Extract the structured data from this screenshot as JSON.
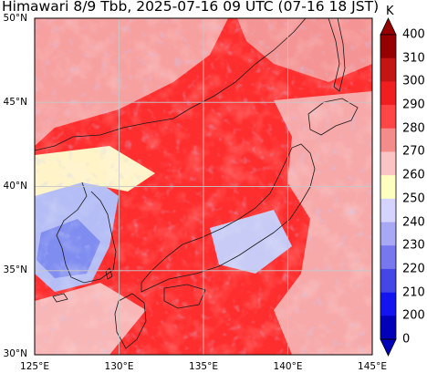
{
  "title": "Himawari 8/9 Tbb, 2025-07-16 09 UTC (07-16 18 JST)",
  "map": {
    "lat_ticks": [
      "50°N",
      "45°N",
      "40°N",
      "35°N",
      "30°N"
    ],
    "lon_ticks": [
      "125°E",
      "130°E",
      "135°E",
      "140°E",
      "145°E"
    ],
    "extent": {
      "lon": [
        125,
        145
      ],
      "lat": [
        30,
        50
      ]
    },
    "gridlines": true
  },
  "colorbar": {
    "unit": "K",
    "labels": [
      "400",
      "310",
      "300",
      "290",
      "280",
      "270",
      "260",
      "250",
      "240",
      "230",
      "220",
      "210",
      "200",
      "0"
    ],
    "colors": [
      "#960000",
      "#c41414",
      "#f01e1e",
      "#ff4646",
      "#f58c8c",
      "#fac4c4",
      "#ffffc0",
      "#d4d4ff",
      "#a8a8f5",
      "#7878ee",
      "#4646e6",
      "#1414f0",
      "#0000b8"
    ]
  },
  "colors": {
    "warm": "#ff2a2a",
    "light_warm": "#f59a9a",
    "neutral": "#fff6c8",
    "cool": "#9aa8f0",
    "coast": "#1a1a1a",
    "grid": "#c8c8c8"
  }
}
